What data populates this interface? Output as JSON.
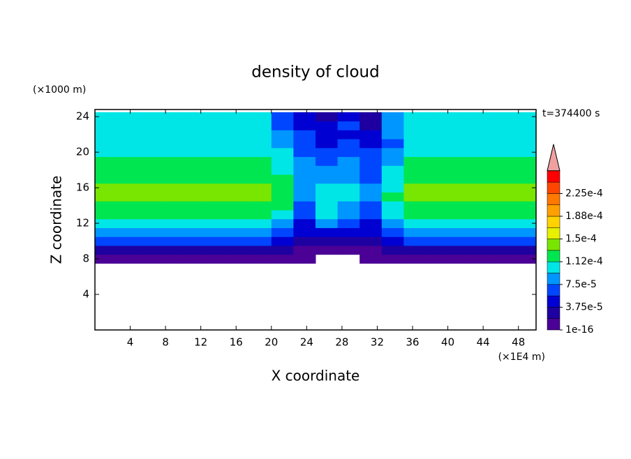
{
  "chart_data": {
    "type": "contour",
    "title": "density of cloud",
    "xlabel": "X coordinate",
    "ylabel": "Z coordinate",
    "x_unit": "(×1E4 m)",
    "y_unit": "(×1000 m)",
    "annotation": "t=374400 s",
    "xlim": [
      0,
      50
    ],
    "ylim": [
      0,
      24.8
    ],
    "xticks": [
      4,
      8,
      12,
      16,
      20,
      24,
      28,
      32,
      36,
      40,
      44,
      48
    ],
    "yticks": [
      4,
      8,
      12,
      16,
      20,
      24
    ],
    "x": [
      1.25,
      3.75,
      6.25,
      8.75,
      11.25,
      13.75,
      16.25,
      18.75,
      21.25,
      23.75,
      26.25,
      28.75,
      31.25,
      33.75,
      36.25,
      38.75,
      41.25,
      43.75,
      46.25,
      48.75
    ],
    "y": [
      8,
      9,
      10,
      11,
      12,
      13,
      14,
      15,
      16,
      17,
      18,
      19,
      20,
      21,
      22,
      23,
      24
    ],
    "z": [
      [
        5e-06,
        5e-06,
        5e-06,
        5e-06,
        5e-06,
        5e-06,
        5e-06,
        5e-06,
        5e-06,
        5e-06,
        null,
        null,
        5e-06,
        5e-06,
        5e-06,
        5e-06,
        5e-06,
        5e-06,
        5e-06,
        5e-06
      ],
      [
        3e-05,
        3e-05,
        3e-05,
        3e-05,
        3e-05,
        3e-05,
        3e-05,
        3e-05,
        2e-05,
        1e-05,
        5e-06,
        1e-05,
        1.5e-05,
        2.5e-05,
        3e-05,
        3e-05,
        3e-05,
        3e-05,
        3e-05,
        3e-05
      ],
      [
        6.5e-05,
        6.5e-05,
        6.5e-05,
        6.5e-05,
        6.5e-05,
        6.5e-05,
        6.5e-05,
        6.5e-05,
        5e-05,
        3e-05,
        2e-05,
        3e-05,
        3e-05,
        5e-05,
        6.5e-05,
        6.5e-05,
        6.5e-05,
        6.5e-05,
        6.5e-05,
        6.5e-05
      ],
      [
        8.5e-05,
        8.5e-05,
        8.5e-05,
        8.5e-05,
        8.5e-05,
        8.5e-05,
        8.5e-05,
        8.5e-05,
        7e-05,
        4e-05,
        5e-05,
        5e-05,
        4e-05,
        7e-05,
        8.5e-05,
        8.5e-05,
        8.5e-05,
        8.5e-05,
        8.5e-05,
        8.5e-05
      ],
      [
        0.0001,
        0.0001,
        0.0001,
        0.0001,
        0.0001,
        0.0001,
        0.0001,
        0.0001,
        9e-05,
        5e-05,
        8e-05,
        7e-05,
        5e-05,
        9e-05,
        0.0001,
        0.0001,
        0.0001,
        0.0001,
        0.0001,
        0.0001
      ],
      [
        0.000115,
        0.000115,
        0.000115,
        0.000115,
        0.000115,
        0.000115,
        0.000115,
        0.000115,
        0.000105,
        6e-05,
        0.0001,
        8e-05,
        6e-05,
        0.000105,
        0.000115,
        0.000115,
        0.000115,
        0.000115,
        0.000115,
        0.000115
      ],
      [
        0.000125,
        0.000125,
        0.000125,
        0.000125,
        0.000125,
        0.000125,
        0.000125,
        0.000125,
        0.000115,
        7e-05,
        0.00011,
        9e-05,
        7e-05,
        0.00011,
        0.000125,
        0.000125,
        0.000125,
        0.000125,
        0.000125,
        0.000125
      ],
      [
        0.000135,
        0.000135,
        0.000135,
        0.000135,
        0.000135,
        0.000135,
        0.000135,
        0.000135,
        0.000125,
        8e-05,
        0.000105,
        0.0001,
        8e-05,
        0.000115,
        0.000135,
        0.000135,
        0.000135,
        0.000135,
        0.000135,
        0.000135
      ],
      [
        0.000135,
        0.000135,
        0.000135,
        0.000135,
        0.000135,
        0.000135,
        0.000135,
        0.000135,
        0.00012,
        9e-05,
        0.0001,
        0.0001,
        8e-05,
        0.00011,
        0.000135,
        0.000135,
        0.000135,
        0.000135,
        0.000135,
        0.000135
      ],
      [
        0.00012,
        0.00012,
        0.00012,
        0.00012,
        0.00012,
        0.00012,
        0.00012,
        0.00012,
        0.000115,
        9e-05,
        9e-05,
        9e-05,
        7e-05,
        0.000105,
        0.00012,
        0.00012,
        0.00012,
        0.00012,
        0.00012,
        0.00012
      ],
      [
        0.000118,
        0.000118,
        0.000118,
        0.000118,
        0.000118,
        0.000118,
        0.000118,
        0.000118,
        0.00011,
        9e-05,
        8e-05,
        8e-05,
        7e-05,
        0.0001,
        0.000118,
        0.000118,
        0.000118,
        0.000118,
        0.000118,
        0.000118
      ],
      [
        0.000115,
        0.000115,
        0.000115,
        0.000115,
        0.000115,
        0.000115,
        0.000115,
        0.000115,
        0.00011,
        8e-05,
        7e-05,
        8e-05,
        6e-05,
        9e-05,
        0.000115,
        0.000115,
        0.000115,
        0.000115,
        0.000115,
        0.000115
      ],
      [
        0.000105,
        0.000105,
        0.000105,
        0.000105,
        0.000105,
        0.000105,
        0.000105,
        0.000105,
        0.0001,
        7e-05,
        6e-05,
        7e-05,
        6e-05,
        8e-05,
        0.000105,
        0.000105,
        0.000105,
        0.000105,
        0.000105,
        0.000105
      ],
      [
        0.0001,
        0.0001,
        0.0001,
        0.0001,
        0.0001,
        0.0001,
        0.0001,
        0.0001,
        9e-05,
        7e-05,
        5e-05,
        6e-05,
        5e-05,
        7e-05,
        0.0001,
        0.0001,
        0.0001,
        0.0001,
        0.0001,
        0.0001
      ],
      [
        9.8e-05,
        9.8e-05,
        9.8e-05,
        9.8e-05,
        9.8e-05,
        9.8e-05,
        9.8e-05,
        9.8e-05,
        8e-05,
        6e-05,
        5e-05,
        5e-05,
        4e-05,
        8e-05,
        9.8e-05,
        9.8e-05,
        9.8e-05,
        9.8e-05,
        9.8e-05,
        9.8e-05
      ],
      [
        9.6e-05,
        9.6e-05,
        9.6e-05,
        9.6e-05,
        9.6e-05,
        9.6e-05,
        9.6e-05,
        9.6e-05,
        7e-05,
        5e-05,
        4e-05,
        6e-05,
        3e-05,
        8e-05,
        9.6e-05,
        9.6e-05,
        9.6e-05,
        9.6e-05,
        9.6e-05,
        9.6e-05
      ],
      [
        9.5e-05,
        9.5e-05,
        9.5e-05,
        9.5e-05,
        9.5e-05,
        9.5e-05,
        9.5e-05,
        9.5e-05,
        6e-05,
        4e-05,
        3e-05,
        5e-05,
        2e-05,
        8e-05,
        9.5e-05,
        9.5e-05,
        9.5e-05,
        9.5e-05,
        9.5e-05,
        9.5e-05
      ]
    ],
    "colorbar": {
      "levels": [
        1e-16,
        1.875e-05,
        3.75e-05,
        5.625e-05,
        7.5e-05,
        9.375e-05,
        0.0001125,
        0.00013125,
        0.00015,
        0.00016875,
        0.0001875,
        0.00020625,
        0.000225,
        0.00024375,
        0.0002625
      ],
      "colors": [
        "#4b0096",
        "#1e00a0",
        "#0000d2",
        "#0046ff",
        "#0096ff",
        "#00e6e6",
        "#00e650",
        "#78e600",
        "#e6f000",
        "#ffd200",
        "#ffa000",
        "#ff7800",
        "#ff4600",
        "#ff0000"
      ],
      "over_color": "#f0a0a0",
      "ticks": [
        {
          "value": 1e-16,
          "label": "1e-16"
        },
        {
          "value": 3.75e-05,
          "label": "3.75e-5"
        },
        {
          "value": 7.5e-05,
          "label": "7.5e-5"
        },
        {
          "value": 0.0001125,
          "label": "1.12e-4"
        },
        {
          "value": 0.00015,
          "label": "1.5e-4"
        },
        {
          "value": 0.0001875,
          "label": "1.88e-4"
        },
        {
          "value": 0.000225,
          "label": "2.25e-4"
        }
      ]
    }
  }
}
